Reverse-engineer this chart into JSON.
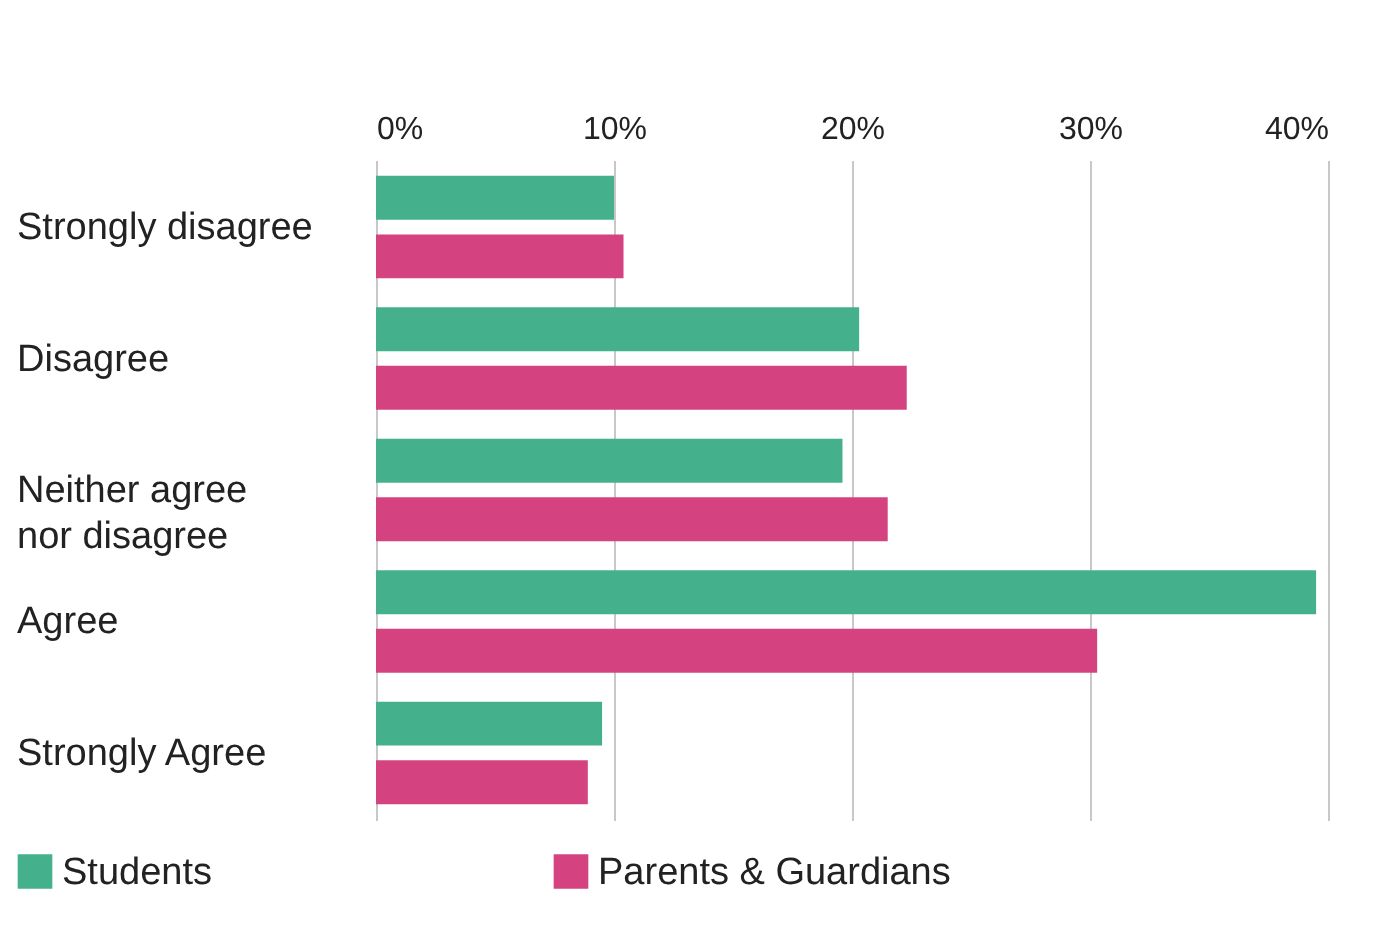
{
  "chart_data": {
    "type": "bar",
    "orientation": "horizontal",
    "categories": [
      "Strongly disagree",
      "Disagree",
      "Neither agree\nnor disagree",
      "Agree",
      "Strongly Agree"
    ],
    "series": [
      {
        "name": "Students",
        "color": "#45b08c",
        "values": [
          10,
          20.3,
          19.6,
          39.5,
          9.5
        ]
      },
      {
        "name": "Parents & Guardians",
        "color": "#d4437f",
        "values": [
          10.4,
          22.3,
          21.5,
          30.3,
          8.9
        ]
      }
    ],
    "xlim": [
      0,
      40
    ],
    "xticks": [
      {
        "value": 0,
        "label": "0%"
      },
      {
        "value": 10,
        "label": "10%"
      },
      {
        "value": 20,
        "label": "20%"
      },
      {
        "value": 30,
        "label": "30%"
      },
      {
        "value": 40,
        "label": "40%"
      }
    ],
    "grid": "x",
    "legend": "bottom left"
  }
}
